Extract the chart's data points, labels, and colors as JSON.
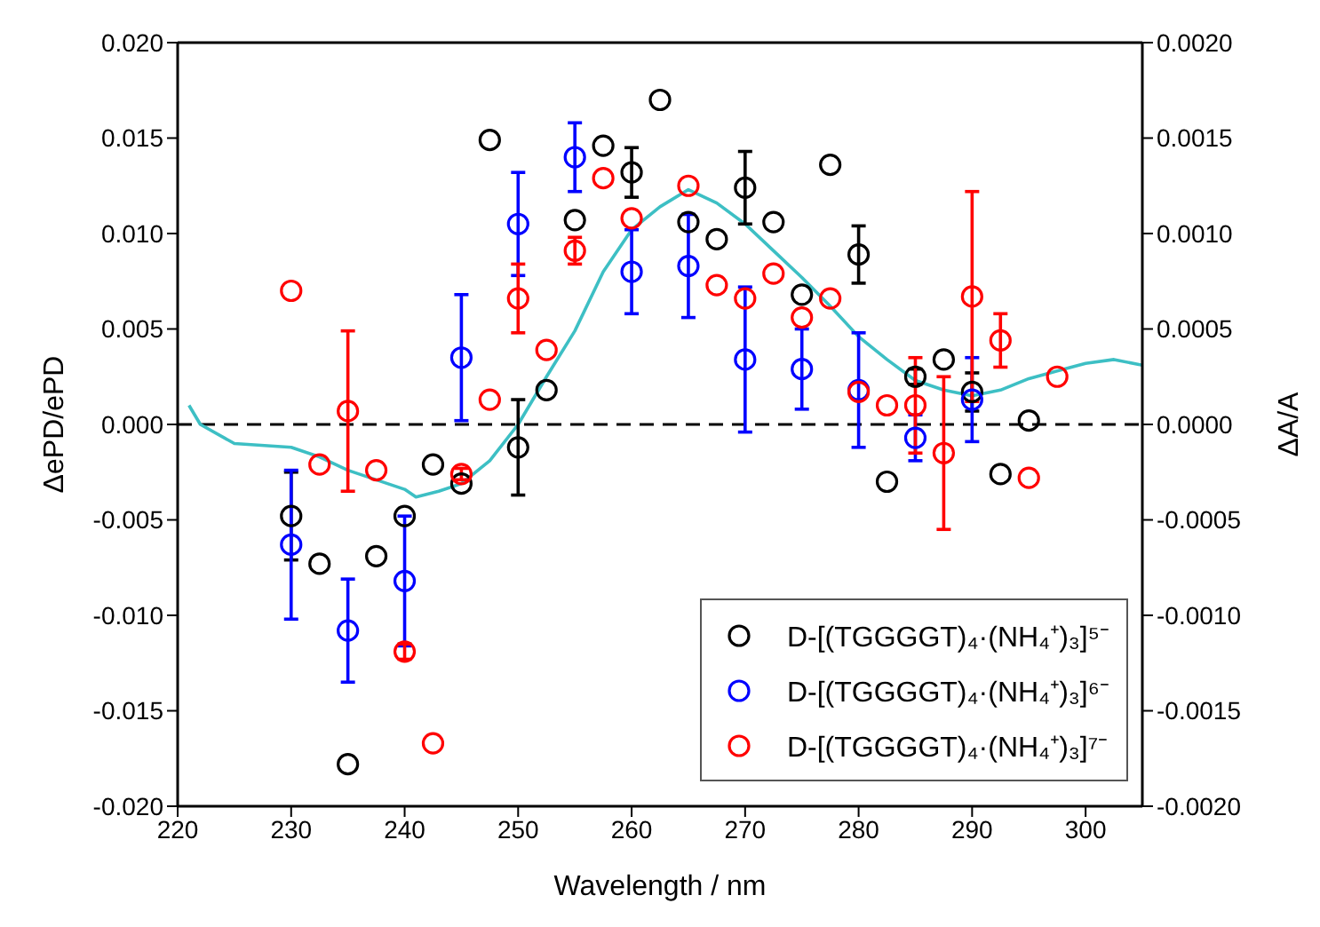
{
  "chart_data": {
    "type": "scatter",
    "xlabel": "Wavelength / nm",
    "ylabel": "ΔePD/ePD",
    "y2label": "ΔA/A",
    "xlim": [
      220,
      305
    ],
    "xticks": [
      220,
      230,
      240,
      250,
      260,
      270,
      280,
      290,
      300
    ],
    "ylim": [
      -0.02,
      0.02
    ],
    "yticks": [
      {
        "value": -0.02,
        "label": "-0.020"
      },
      {
        "value": -0.015,
        "label": "-0.015"
      },
      {
        "value": -0.01,
        "label": "-0.010"
      },
      {
        "value": -0.005,
        "label": "-0.005"
      },
      {
        "value": 0,
        "label": "0.000"
      },
      {
        "value": 0.005,
        "label": "0.005"
      },
      {
        "value": 0.01,
        "label": "0.010"
      },
      {
        "value": 0.015,
        "label": "0.015"
      },
      {
        "value": 0.02,
        "label": "0.020"
      }
    ],
    "y2lim": [
      -0.002,
      0.002
    ],
    "y2ticks": [
      {
        "value": -0.002,
        "label": "-0.0020"
      },
      {
        "value": -0.0015,
        "label": "-0.0015"
      },
      {
        "value": -0.001,
        "label": "-0.0010"
      },
      {
        "value": -0.0005,
        "label": "-0.0005"
      },
      {
        "value": 0,
        "label": "0.0000"
      },
      {
        "value": 0.0005,
        "label": "0.0005"
      },
      {
        "value": 0.001,
        "label": "0.0010"
      },
      {
        "value": 0.0015,
        "label": "0.0015"
      },
      {
        "value": 0.002,
        "label": "0.0020"
      }
    ],
    "legend": "bottom right",
    "marker": "circle",
    "ref_lines": [
      {
        "axis": "y",
        "value": 0,
        "color": "#000000",
        "line_style": "dashed"
      }
    ],
    "series": [
      {
        "name": "D-[(TGGGGT)₄·(NH₄⁺)₃]⁵⁻",
        "color": "#000000",
        "x": [
          230,
          232.5,
          235,
          237.5,
          240,
          242.5,
          245,
          247.5,
          250,
          252.5,
          255,
          257.5,
          260,
          262.5,
          265,
          267.5,
          270,
          272.5,
          275,
          277.5,
          280,
          282.5,
          285,
          287.5,
          290,
          292.5,
          295
        ],
        "values": [
          -0.0048,
          -0.0073,
          -0.0178,
          -0.0069,
          -0.0048,
          -0.0021,
          -0.0031,
          0.0149,
          -0.0012,
          0.0018,
          0.0107,
          0.0146,
          0.0132,
          0.017,
          0.0106,
          0.0097,
          0.0124,
          0.0106,
          0.0068,
          0.0136,
          0.0089,
          -0.003,
          0.0025,
          0.0034,
          0.0017,
          -0.0026,
          0.0002
        ],
        "errors": [
          0.0023,
          null,
          null,
          null,
          null,
          null,
          null,
          null,
          0.0025,
          null,
          null,
          null,
          0.0013,
          null,
          null,
          null,
          0.0019,
          null,
          null,
          null,
          0.0015,
          null,
          0.0004,
          null,
          0.001,
          null,
          null
        ]
      },
      {
        "name": "D-[(TGGGGT)₄·(NH₄⁺)₃]⁶⁻",
        "color": "#0000ff",
        "x": [
          230,
          235,
          240,
          245,
          250,
          255,
          260,
          265,
          270,
          275,
          280,
          285,
          290
        ],
        "values": [
          -0.0063,
          -0.0108,
          -0.0082,
          0.0035,
          0.0105,
          0.014,
          0.008,
          0.0083,
          0.0034,
          0.0029,
          0.0018,
          -0.0007,
          0.0013
        ],
        "errors": [
          0.0039,
          0.0027,
          0.0034,
          0.0033,
          0.0027,
          0.0018,
          0.0022,
          0.0027,
          0.0038,
          0.0021,
          0.003,
          0.0012,
          0.0022
        ]
      },
      {
        "name": "D-[(TGGGGT)₄·(NH₄⁺)₃]⁷⁻",
        "color": "#ff0000",
        "x": [
          230,
          232.5,
          235,
          237.5,
          240,
          242.5,
          245,
          247.5,
          250,
          252.5,
          255,
          257.5,
          260,
          265,
          267.5,
          270,
          272.5,
          275,
          277.5,
          280,
          282.5,
          285,
          287.5,
          290,
          292.5,
          295,
          297.5
        ],
        "values": [
          0.007,
          -0.0021,
          0.0007,
          -0.0024,
          -0.0119,
          -0.0167,
          -0.0026,
          0.0013,
          0.0066,
          0.0039,
          0.0091,
          0.0129,
          0.0108,
          0.0125,
          0.0073,
          0.0066,
          0.0079,
          0.0056,
          0.0066,
          0.0017,
          0.001,
          0.001,
          -0.0015,
          0.0067,
          0.0044,
          -0.0028,
          0.0025
        ],
        "errors": [
          null,
          null,
          0.0042,
          null,
          0.0004,
          null,
          0.0003,
          null,
          0.0018,
          null,
          0.0007,
          null,
          null,
          null,
          null,
          null,
          null,
          null,
          null,
          null,
          null,
          0.0025,
          0.004,
          0.0055,
          0.0014,
          null,
          null
        ]
      },
      {
        "type": "line",
        "axis": "y2",
        "color": "#3dbfc4",
        "marker": "none",
        "x": [
          221,
          222,
          225,
          230,
          232.5,
          235,
          237.5,
          240,
          241,
          243,
          245,
          247.5,
          250,
          252.5,
          255,
          257.5,
          260,
          262.5,
          265,
          267.5,
          270,
          272.5,
          275,
          277.5,
          280,
          282.5,
          285,
          287.5,
          290,
          292.5,
          295,
          297.5,
          300,
          302.5,
          305
        ],
        "values": [
          0.0001,
          0,
          -0.0001,
          -0.00012,
          -0.00017,
          -0.00024,
          -0.00029,
          -0.00034,
          -0.00038,
          -0.00035,
          -0.00031,
          -0.00019,
          0,
          0.00025,
          0.00049,
          0.0008,
          0.00102,
          0.00114,
          0.00123,
          0.00116,
          0.00105,
          0.00091,
          0.00077,
          0.00062,
          0.00046,
          0.00034,
          0.00023,
          0.00018,
          0.00015,
          0.00018,
          0.00024,
          0.00028,
          0.00032,
          0.00034,
          0.00031
        ]
      }
    ]
  }
}
